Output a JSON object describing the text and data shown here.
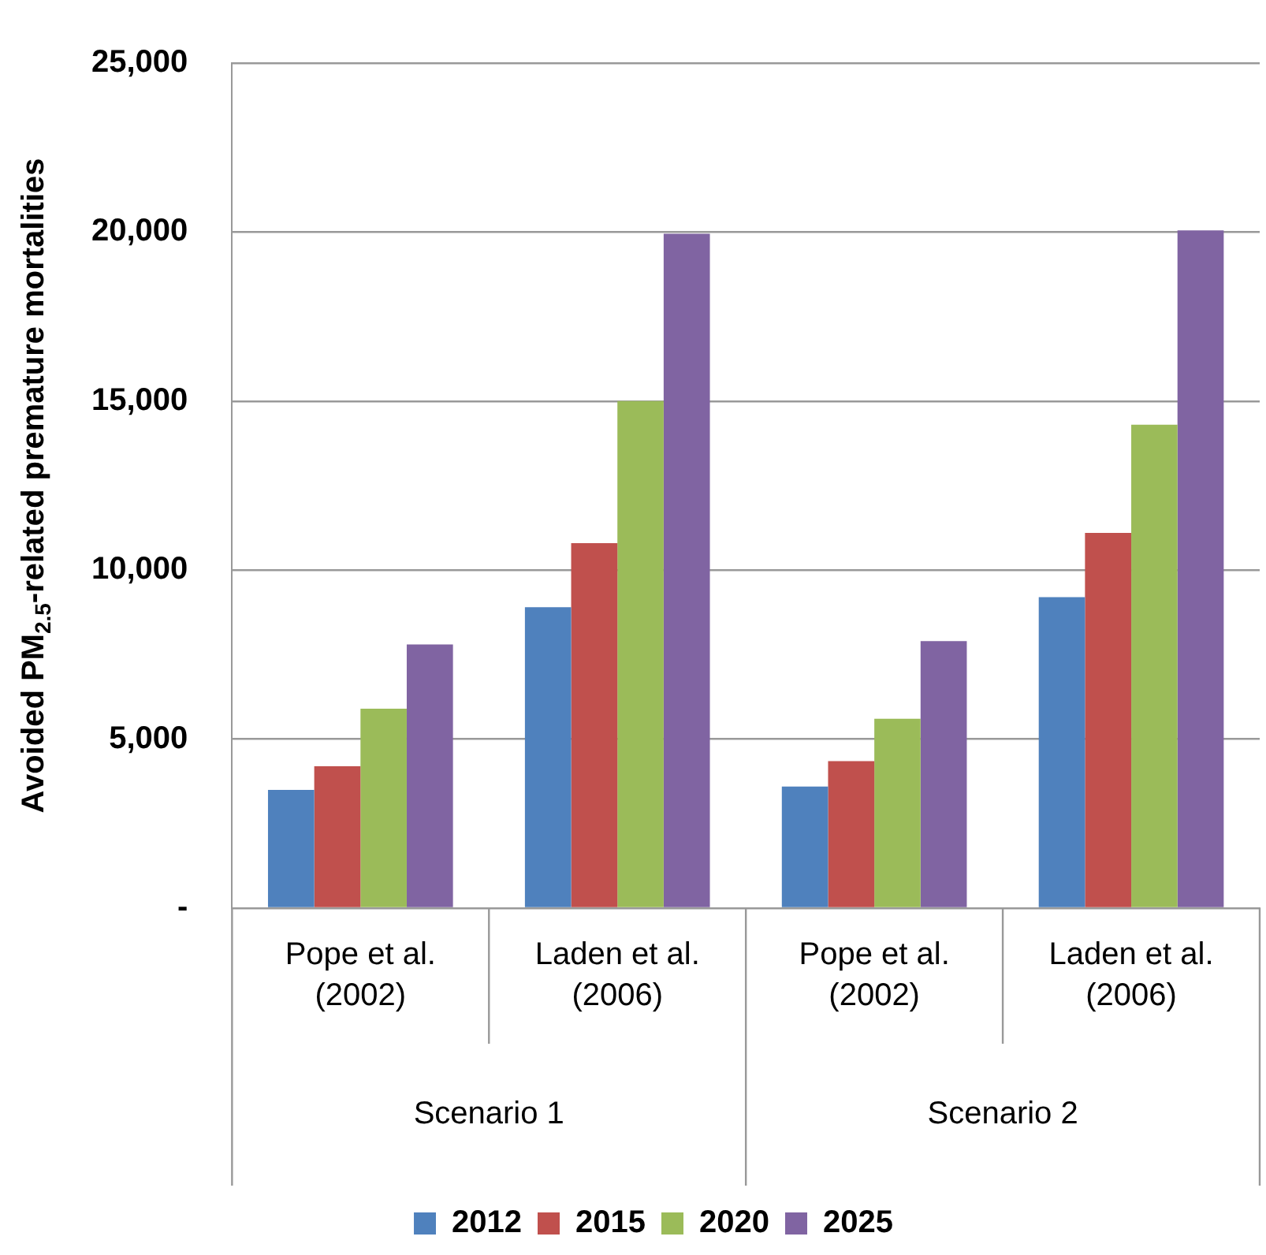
{
  "chart_data": {
    "type": "bar",
    "ylabel": "Avoided PM$_{2.5}$-related premature mortalities",
    "categories": [
      "Pope et al. (2002)",
      "Laden et al. (2006)",
      "Pope et al. (2002)",
      "Laden et al. (2006)"
    ],
    "series": [
      {
        "name": "2012",
        "color": "#4f81bd",
        "values": [
          3500,
          8900,
          3600,
          9200
        ]
      },
      {
        "name": "2015",
        "color": "#c0504d",
        "values": [
          4200,
          10800,
          4350,
          11100
        ]
      },
      {
        "name": "2020",
        "color": "#9bbb59",
        "values": [
          5900,
          15000,
          5600,
          14300
        ]
      },
      {
        "name": "2025",
        "color": "#8064a2",
        "values": [
          7800,
          19950,
          7900,
          20050
        ]
      }
    ],
    "ylim": [
      0,
      25000
    ],
    "yticks": [
      {
        "value": 0,
        "label": "-"
      },
      {
        "value": 5000,
        "label": "5,000"
      },
      {
        "value": 10000,
        "label": "10,000"
      },
      {
        "value": 15000,
        "label": "15,000"
      },
      {
        "value": 20000,
        "label": "20,000"
      },
      {
        "value": 25000,
        "label": "25,000"
      }
    ],
    "annotations": [
      "Scenario 1",
      "Scenario 2"
    ],
    "grid": "y",
    "legend": "bottom"
  }
}
